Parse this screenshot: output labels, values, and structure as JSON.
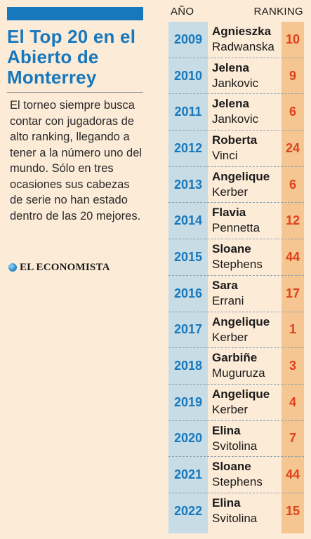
{
  "title": "El Top 20 en el Abierto de Monterrey",
  "description": "El torneo siempre busca contar con jugadoras de alto ranking, llegando a tener a la número uno del mundo. Sólo en tres ocasiones sus cabezas de serie no han estado dentro de las 20 mejores.",
  "brand": "EL ECONOMISTA",
  "colors": {
    "accent_blue": "#1878bd",
    "rank_red": "#e0411d",
    "year_col": "#c7dce4",
    "rank_col": "#f6c692",
    "background": "#fcebd7"
  },
  "table": {
    "headers": {
      "year": "AÑO",
      "ranking": "RANKING"
    },
    "rows": [
      {
        "year": "2009",
        "first": "Agnieszka",
        "last": "Radwanska",
        "rank": "10"
      },
      {
        "year": "2010",
        "first": "Jelena",
        "last": "Jankovic",
        "rank": "9"
      },
      {
        "year": "2011",
        "first": "Jelena",
        "last": "Jankovic",
        "rank": "6"
      },
      {
        "year": "2012",
        "first": "Roberta",
        "last": "Vinci",
        "rank": "24"
      },
      {
        "year": "2013",
        "first": "Angelique",
        "last": "Kerber",
        "rank": "6"
      },
      {
        "year": "2014",
        "first": "Flavia",
        "last": "Pennetta",
        "rank": "12"
      },
      {
        "year": "2015",
        "first": "Sloane",
        "last": "Stephens",
        "rank": "44"
      },
      {
        "year": "2016",
        "first": "Sara",
        "last": "Errani",
        "rank": "17"
      },
      {
        "year": "2017",
        "first": "Angelique",
        "last": "Kerber",
        "rank": "1"
      },
      {
        "year": "2018",
        "first": "Garbiñe",
        "last": "Muguruza",
        "rank": "3"
      },
      {
        "year": "2019",
        "first": "Angelique",
        "last": "Kerber",
        "rank": "4"
      },
      {
        "year": "2020",
        "first": "Elina",
        "last": "Svitolina",
        "rank": "7"
      },
      {
        "year": "2021",
        "first": "Sloane",
        "last": "Stephens",
        "rank": "44"
      },
      {
        "year": "2022",
        "first": "Elina",
        "last": "Svitolina",
        "rank": "15"
      }
    ]
  }
}
